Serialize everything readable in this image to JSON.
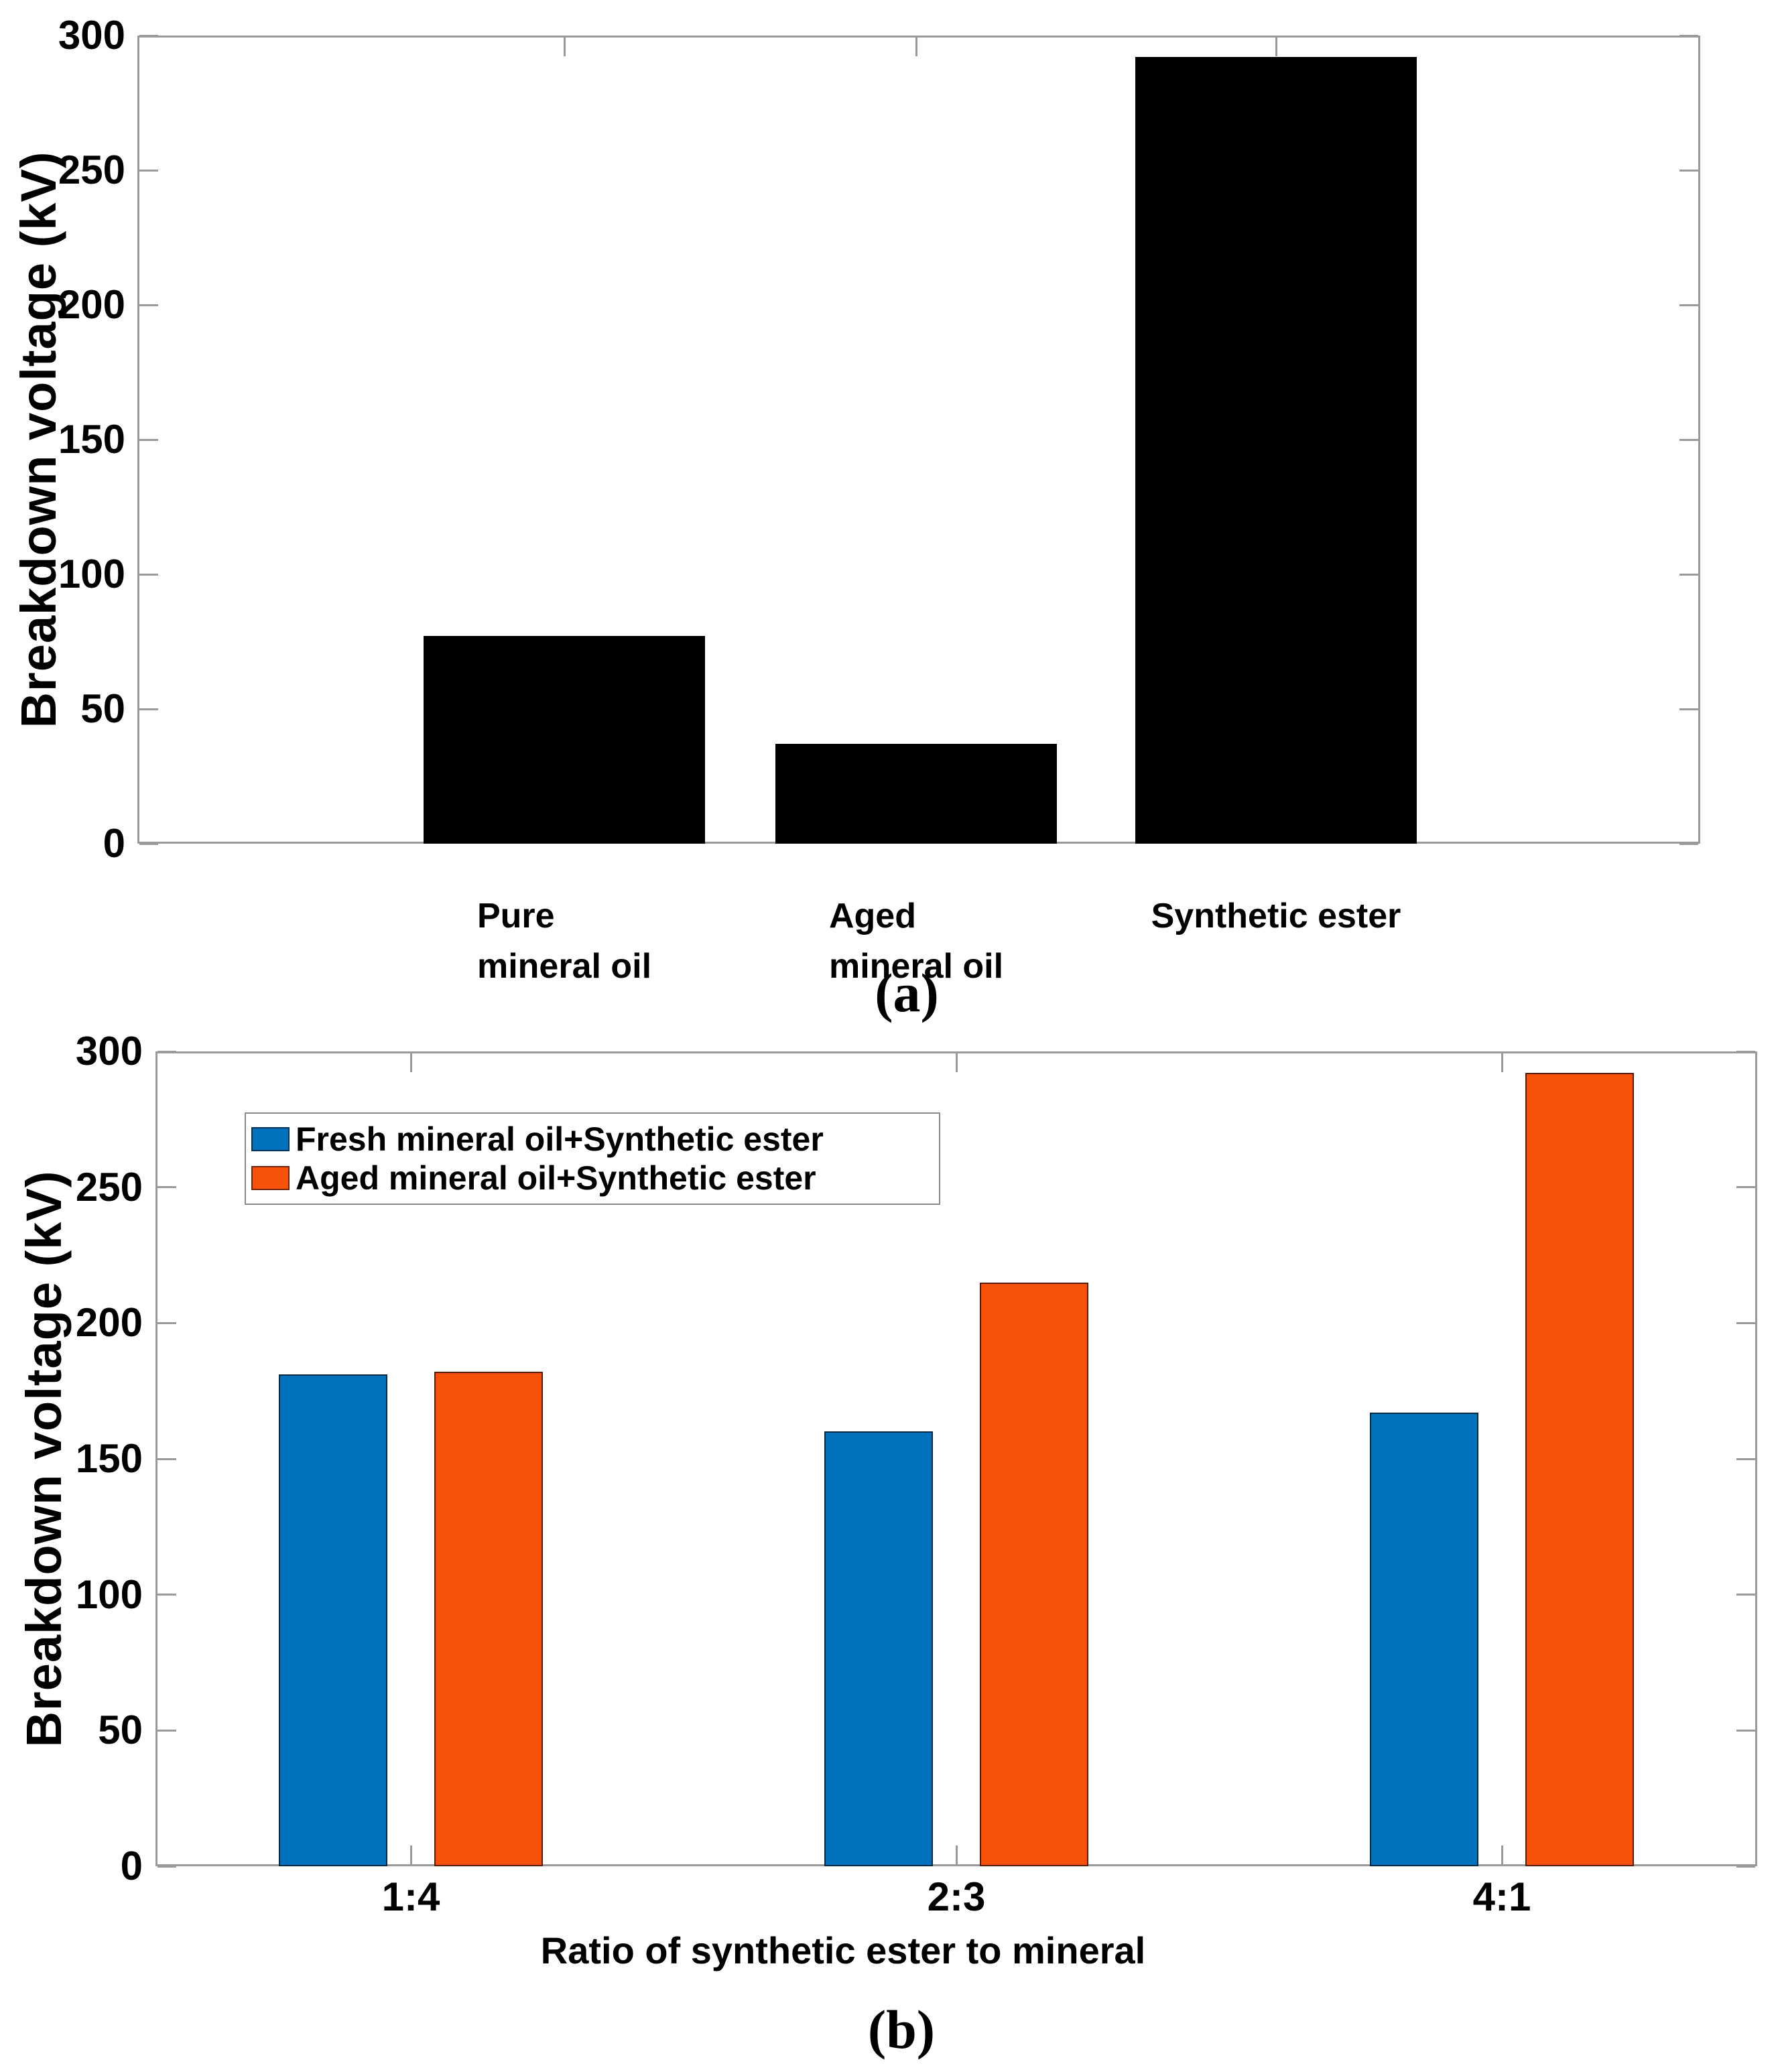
{
  "axis_color": "#9a9a9a",
  "text_color": "#000000",
  "chart_data": [
    {
      "id": "a",
      "type": "bar",
      "title": "",
      "caption": "(a)",
      "categories": [
        "Pure\nmineral oil",
        "Aged\nmineral oil",
        "Synthetic ester"
      ],
      "values": [
        77,
        37,
        292
      ],
      "bar_color": "#000000",
      "xlabel": "",
      "ylabel": "Breakdown voltage (kV)",
      "yticks": [
        0,
        50,
        100,
        150,
        200,
        250,
        300
      ],
      "ylim": [
        0,
        300
      ],
      "grid": false,
      "legend_position": null
    },
    {
      "id": "b",
      "type": "bar",
      "title": "",
      "caption": "(b)",
      "categories": [
        "1:4",
        "2:3",
        "4:1"
      ],
      "series": [
        {
          "name": "Fresh mineral oil+Synthetic ester",
          "color": "#0072BD",
          "values": [
            181,
            160,
            167
          ]
        },
        {
          "name": "Aged mineral oil+Synthetic ester",
          "color": "#F8520A",
          "values": [
            182,
            215,
            292
          ]
        }
      ],
      "xlabel": "Ratio of synthetic ester to mineral",
      "ylabel": "Breakdown voltage (kV)",
      "yticks": [
        0,
        50,
        100,
        150,
        200,
        250,
        300
      ],
      "ylim": [
        0,
        300
      ],
      "grid": false,
      "legend_position": "upper left"
    }
  ]
}
